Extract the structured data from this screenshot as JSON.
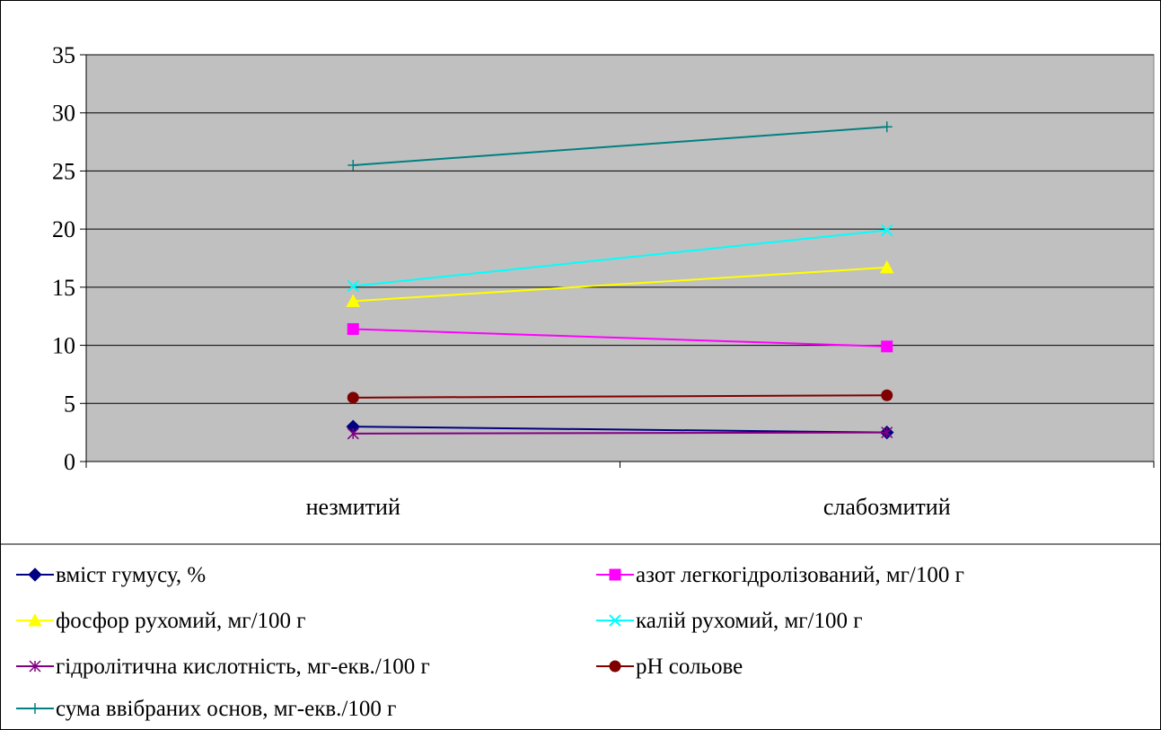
{
  "chart_data": {
    "type": "line",
    "categories": [
      "незмитий",
      "слабозмитий"
    ],
    "ylim": [
      0,
      35
    ],
    "yticks": [
      0,
      5,
      10,
      15,
      20,
      25,
      30,
      35
    ],
    "grid": true,
    "legend_position": "bottom",
    "series": [
      {
        "name": "вміст гумусу, %",
        "values": [
          3.0,
          2.5
        ],
        "color": "#000080",
        "marker": "diamond"
      },
      {
        "name": "азот легкогідролізований, мг/100 г",
        "values": [
          11.4,
          9.9
        ],
        "color": "#FF00FF",
        "marker": "square"
      },
      {
        "name": "фосфор рухомий, мг/100 г",
        "values": [
          13.8,
          16.7
        ],
        "color": "#FFFF00",
        "marker": "triangle"
      },
      {
        "name": "калій рухомий, мг/100 г",
        "values": [
          15.1,
          19.9
        ],
        "color": "#00FFFF",
        "marker": "x"
      },
      {
        "name": "гідролітична кислотність, мг-екв./100 г",
        "values": [
          2.4,
          2.5
        ],
        "color": "#800080",
        "marker": "star"
      },
      {
        "name": "рН сольове",
        "values": [
          5.5,
          5.7
        ],
        "color": "#800000",
        "marker": "circle"
      },
      {
        "name": "сума ввібраних основ, мг-екв./100 г",
        "values": [
          25.5,
          28.8
        ],
        "color": "#008080",
        "marker": "plus"
      }
    ]
  }
}
